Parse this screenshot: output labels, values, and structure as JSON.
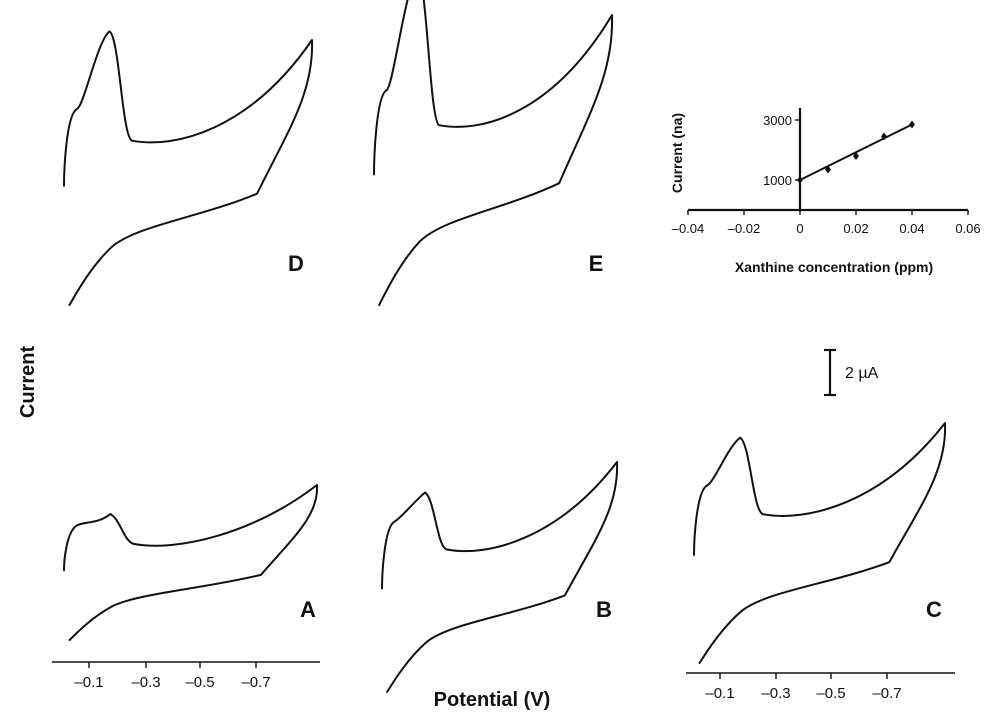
{
  "figure": {
    "ylabel": "Current",
    "xlabel": "Potential (V)",
    "scale_bar_label": "2 µA"
  },
  "chart_data": [
    {
      "type": "line",
      "panel": "A",
      "xlabel": "Potential (V)",
      "ylabel": "Current",
      "x_ticks": [
        "–0.1",
        "–0.3",
        "–0.5",
        "–0.7"
      ],
      "peak_height": 0.35
    },
    {
      "type": "line",
      "panel": "B",
      "xlabel": "",
      "ylabel": "",
      "x_ticks": [],
      "peak_height": 0.45
    },
    {
      "type": "line",
      "panel": "C",
      "xlabel": "",
      "ylabel": "",
      "x_ticks": [
        "–0.1",
        "–0.3",
        "–0.5",
        "–0.7"
      ],
      "peak_height": 0.58
    },
    {
      "type": "line",
      "panel": "D",
      "xlabel": "",
      "ylabel": "",
      "x_ticks": [],
      "peak_height": 0.75
    },
    {
      "type": "line",
      "panel": "E",
      "xlabel": "",
      "ylabel": "",
      "x_ticks": [],
      "peak_height": 0.95
    },
    {
      "type": "scatter",
      "panel": "inset",
      "xlabel": "Xanthine concentration (ppm)",
      "ylabel": "Current (na)",
      "x_ticks": [
        "–0.04",
        "–0.02",
        "0",
        "0.02",
        "0.04",
        "0.06"
      ],
      "y_ticks": [
        "1000",
        "3000"
      ],
      "xlim": [
        -0.04,
        0.06
      ],
      "ylim": [
        0,
        3000
      ],
      "x": [
        0,
        0.01,
        0.02,
        0.03,
        0.04
      ],
      "y": [
        1000,
        1350,
        1800,
        2450,
        2850
      ],
      "fit": {
        "x": [
          0,
          0.04
        ],
        "y": [
          1000,
          2850
        ]
      }
    }
  ]
}
